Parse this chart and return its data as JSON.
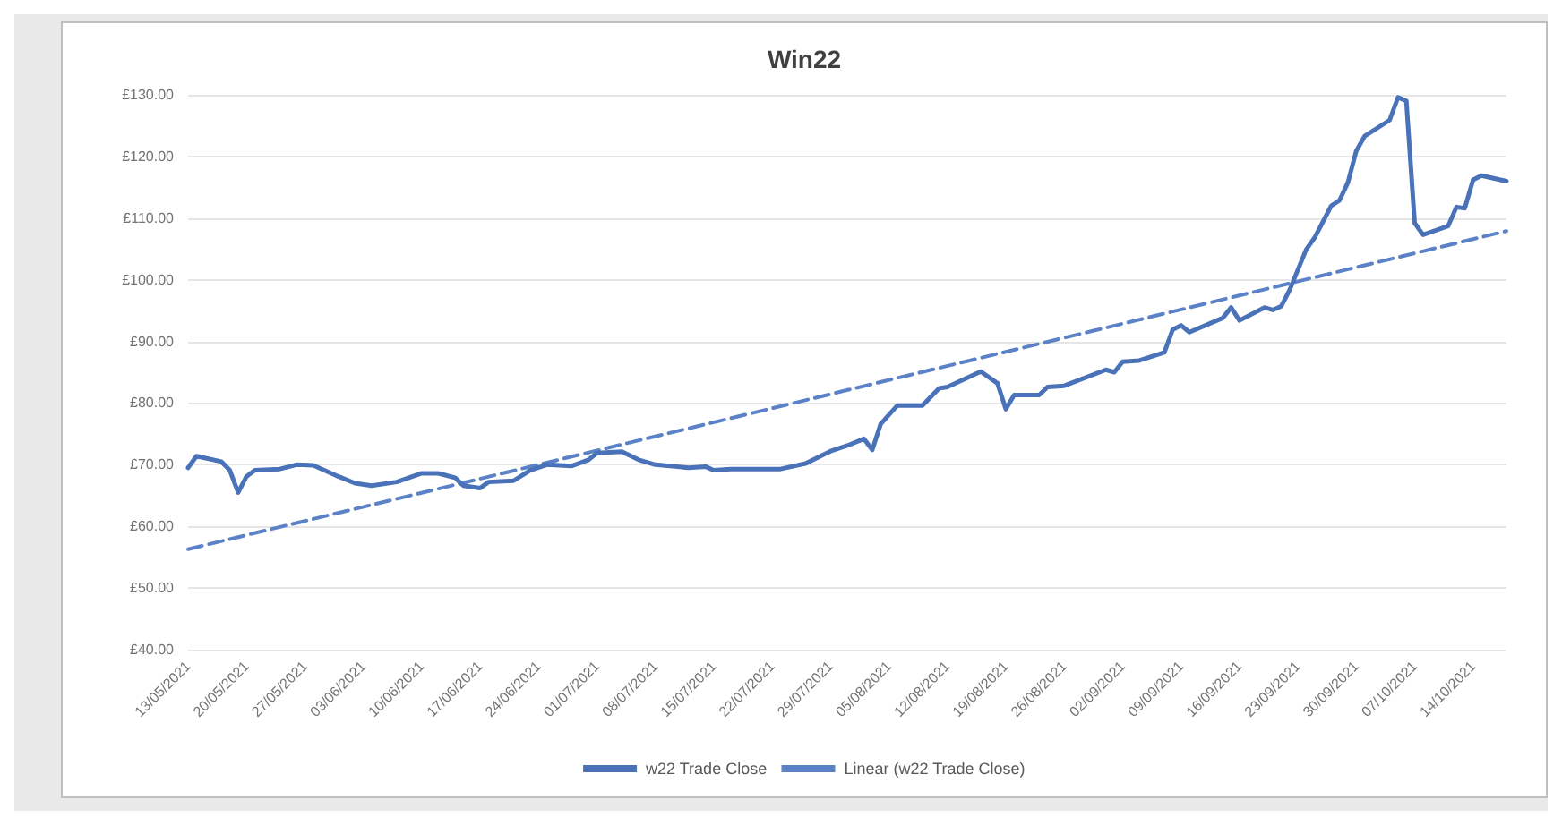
{
  "chart_data": {
    "type": "line",
    "title": "Win22",
    "x": [
      "2021-05-13",
      "2021-05-14",
      "2021-05-17",
      "2021-05-18",
      "2021-05-19",
      "2021-05-20",
      "2021-05-21",
      "2021-05-24",
      "2021-05-26",
      "2021-05-28",
      "2021-05-31",
      "2021-06-02",
      "2021-06-04",
      "2021-06-07",
      "2021-06-10",
      "2021-06-12",
      "2021-06-14",
      "2021-06-15",
      "2021-06-17",
      "2021-06-18",
      "2021-06-21",
      "2021-06-23",
      "2021-06-25",
      "2021-06-28",
      "2021-06-30",
      "2021-07-01",
      "2021-07-04",
      "2021-07-06",
      "2021-07-08",
      "2021-07-12",
      "2021-07-14",
      "2021-07-15",
      "2021-07-17",
      "2021-07-19",
      "2021-07-23",
      "2021-07-26",
      "2021-07-29",
      "2021-07-31",
      "2021-08-02",
      "2021-08-03",
      "2021-08-04",
      "2021-08-06",
      "2021-08-09",
      "2021-08-11",
      "2021-08-12",
      "2021-08-16",
      "2021-08-18",
      "2021-08-19",
      "2021-08-20",
      "2021-08-23",
      "2021-08-24",
      "2021-08-26",
      "2021-08-31",
      "2021-09-01",
      "2021-09-02",
      "2021-09-04",
      "2021-09-07",
      "2021-09-08",
      "2021-09-09",
      "2021-09-10",
      "2021-09-14",
      "2021-09-15",
      "2021-09-16",
      "2021-09-19",
      "2021-09-20",
      "2021-09-21",
      "2021-09-22",
      "2021-09-24",
      "2021-09-25",
      "2021-09-27",
      "2021-09-28",
      "2021-09-29",
      "2021-09-30",
      "2021-10-01",
      "2021-10-04",
      "2021-10-05",
      "2021-10-06",
      "2021-10-07",
      "2021-10-08",
      "2021-10-11",
      "2021-10-12",
      "2021-10-13",
      "2021-10-14",
      "2021-10-15",
      "2021-10-18"
    ],
    "series": [
      {
        "name": "w22 Trade Close",
        "color": "#4a72b8",
        "line_style": "solid",
        "values": [
          69.5,
          71.4,
          70.5,
          69.1,
          65.5,
          68.1,
          69.1,
          69.3,
          70.0,
          69.9,
          68.1,
          67.0,
          66.6,
          67.2,
          68.6,
          68.6,
          67.9,
          66.6,
          66.2,
          67.2,
          67.4,
          69.1,
          70.0,
          69.8,
          70.8,
          71.9,
          72.1,
          70.8,
          70.0,
          69.5,
          69.7,
          69.1,
          69.3,
          69.3,
          69.3,
          70.2,
          72.2,
          73.1,
          74.2,
          72.4,
          76.6,
          79.6,
          79.6,
          82.4,
          82.6,
          85.1,
          83.2,
          79.0,
          81.3,
          81.3,
          82.6,
          82.8,
          85.4,
          85.0,
          86.7,
          86.9,
          88.2,
          91.9,
          92.6,
          91.5,
          93.8,
          95.5,
          93.4,
          95.5,
          95.1,
          95.7,
          98.3,
          104.9,
          106.8,
          112.0,
          112.9,
          115.8,
          120.9,
          123.3,
          125.9,
          129.6,
          129.0,
          109.2,
          107.3,
          108.7,
          111.8,
          111.6,
          116.2,
          116.9,
          116.0
        ]
      },
      {
        "name": "Linear (w22 Trade Close)",
        "type": "line",
        "color": "#5b82c6",
        "line_style": "dashed",
        "x": [
          "2021-05-13",
          "2021-10-18"
        ],
        "values": [
          56.3,
          107.9
        ]
      }
    ],
    "xlim": [
      "2021-05-13",
      "2021-10-18"
    ],
    "xticks": [
      {
        "value": "2021-05-13",
        "label": "13/05/2021"
      },
      {
        "value": "2021-05-20",
        "label": "20/05/2021"
      },
      {
        "value": "2021-05-27",
        "label": "27/05/2021"
      },
      {
        "value": "2021-06-03",
        "label": "03/06/2021"
      },
      {
        "value": "2021-06-10",
        "label": "10/06/2021"
      },
      {
        "value": "2021-06-17",
        "label": "17/06/2021"
      },
      {
        "value": "2021-06-24",
        "label": "24/06/2021"
      },
      {
        "value": "2021-07-01",
        "label": "01/07/2021"
      },
      {
        "value": "2021-07-08",
        "label": "08/07/2021"
      },
      {
        "value": "2021-07-15",
        "label": "15/07/2021"
      },
      {
        "value": "2021-07-22",
        "label": "22/07/2021"
      },
      {
        "value": "2021-07-29",
        "label": "29/07/2021"
      },
      {
        "value": "2021-08-05",
        "label": "05/08/2021"
      },
      {
        "value": "2021-08-12",
        "label": "12/08/2021"
      },
      {
        "value": "2021-08-19",
        "label": "19/08/2021"
      },
      {
        "value": "2021-08-26",
        "label": "26/08/2021"
      },
      {
        "value": "2021-09-02",
        "label": "02/09/2021"
      },
      {
        "value": "2021-09-09",
        "label": "09/09/2021"
      },
      {
        "value": "2021-09-16",
        "label": "16/09/2021"
      },
      {
        "value": "2021-09-23",
        "label": "23/09/2021"
      },
      {
        "value": "2021-09-30",
        "label": "30/09/2021"
      },
      {
        "value": "2021-10-07",
        "label": "07/10/2021"
      },
      {
        "value": "2021-10-14",
        "label": "14/10/2021"
      }
    ],
    "ylim": [
      40,
      130
    ],
    "yticks": [
      {
        "value": 40,
        "label": "£40.00"
      },
      {
        "value": 50,
        "label": "£50.00"
      },
      {
        "value": 60,
        "label": "£60.00"
      },
      {
        "value": 70,
        "label": "£70.00"
      },
      {
        "value": 80,
        "label": "£80.00"
      },
      {
        "value": 90,
        "label": "£90.00"
      },
      {
        "value": 100,
        "label": "£100.00"
      },
      {
        "value": 110,
        "label": "£110.00"
      },
      {
        "value": 120,
        "label": "£120.00"
      },
      {
        "value": 130,
        "label": "£130.00"
      }
    ],
    "grid": "y",
    "legend": "bottom",
    "marker": "none"
  }
}
